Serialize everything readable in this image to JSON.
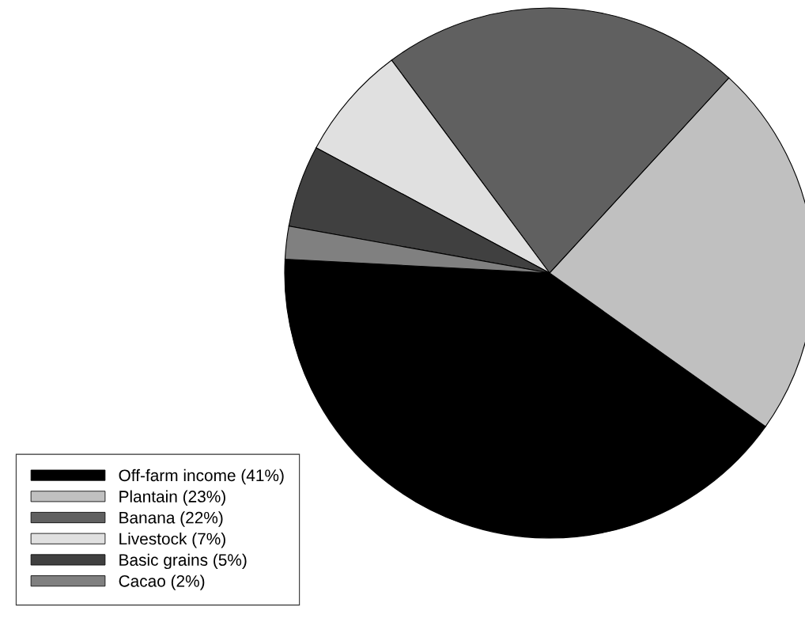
{
  "chart_data": {
    "type": "pie",
    "categories": [
      "Off-farm income (41%)",
      "Plantain (23%)",
      "Banana (22%)",
      "Livestock (7%)",
      "Basic grains (5%)",
      "Cacao (2%)"
    ],
    "values": [
      41,
      23,
      22,
      7,
      5,
      2
    ],
    "colors": [
      "#000000",
      "#c0c0c0",
      "#606060",
      "#e0e0e0",
      "#404040",
      "#808080"
    ],
    "legend": "bottom left"
  }
}
